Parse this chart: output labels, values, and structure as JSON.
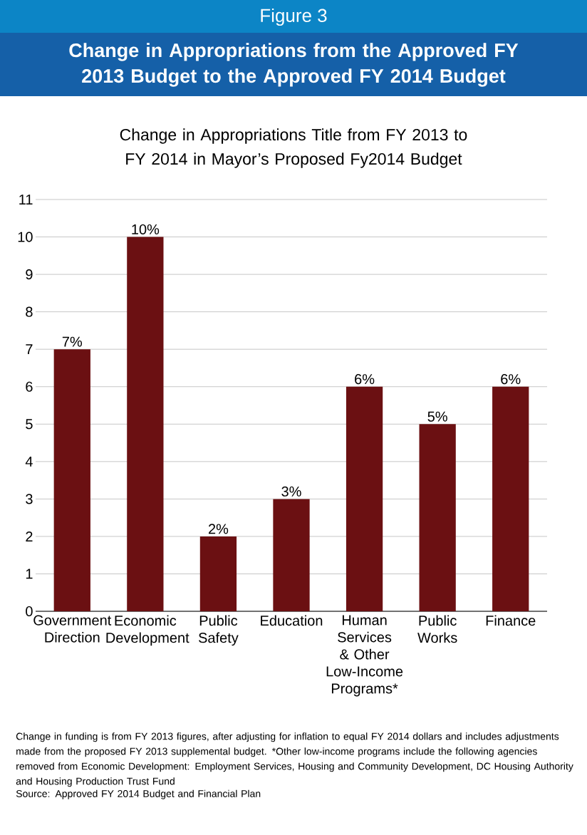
{
  "chart_data": {
    "type": "bar",
    "title": "Change in Appropriations from the Approved FY 2013 Budget to the Approved FY 2014 Budget",
    "subtitle": "Change in Appropriations Title from FY 2013 to FY 2014 in Mayor’s Proposed Fy2014 Budget",
    "categories": [
      "Government Direction",
      "Economic Development",
      "Public Safety",
      "Education",
      "Human Services & Other Low-Income Programs*",
      "Public Works",
      "Finance"
    ],
    "values": [
      7,
      10,
      2,
      3,
      6,
      5,
      6
    ],
    "value_labels": [
      "7%",
      "10%",
      "2%",
      "3%",
      "6%",
      "5%",
      "6%"
    ],
    "color": "#6b1012",
    "ylim": [
      0,
      11
    ],
    "yticks": [
      0,
      1,
      2,
      3,
      4,
      5,
      6,
      7,
      8,
      9,
      10,
      11
    ],
    "grid": "y",
    "annotations": [
      "Figure 3",
      "Change in funding is from FY 2013 figures, after adjusting for inflation to equal FY 2014 dollars and includes adjustments made from the proposed FY 2013 supplemental budget.  *Other low-income programs include the following agencies removed from Economic Development: Employment Services, Housing and Community Development, DC Housing Authority and Housing Production Trust Fund",
      "Source: Approved FY 2014 Budget and Financial Plan"
    ]
  }
}
